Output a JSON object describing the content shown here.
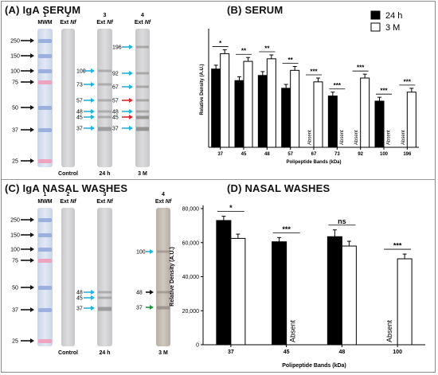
{
  "panels": {
    "A": {
      "title": "(A) IgA SERUM",
      "lanes": [
        {
          "num": "1",
          "label": "MWM",
          "italic": ""
        },
        {
          "num": "2",
          "label": "Ext ",
          "italic": "Nf"
        },
        {
          "num": "3",
          "label": "Ext ",
          "italic": "Nf"
        },
        {
          "num": "4",
          "label": "Ext ",
          "italic": "Nf"
        }
      ],
      "mwm_markers": [
        "250",
        "150",
        "100",
        "75",
        "50",
        "37",
        "25"
      ],
      "lane3_arrows": [
        "100",
        "73",
        "57",
        "48",
        "45",
        "37"
      ],
      "lane4_arrows": [
        "196",
        "92",
        "67",
        "57",
        "48",
        "45",
        "37"
      ],
      "bottom_labels": [
        "Control",
        "24 h",
        "3 M"
      ]
    },
    "C": {
      "title": "(C) IgA NASAL WASHES",
      "lanes": [
        {
          "num": "1",
          "label": "MWM",
          "italic": ""
        },
        {
          "num": "2",
          "label": "Ext ",
          "italic": "Nf"
        },
        {
          "num": "3",
          "label": "Ext ",
          "italic": "Nf"
        },
        {
          "num": "4",
          "label": "Ext ",
          "italic": "Nf"
        }
      ],
      "mwm_markers": [
        "250",
        "150",
        "100",
        "75",
        "50",
        "37",
        "25"
      ],
      "lane3_arrows": [
        "48",
        "45",
        "37"
      ],
      "lane4_arrows": [
        "100",
        "48",
        "37"
      ],
      "bottom_labels": [
        "Control",
        "24 h",
        "3 M"
      ]
    },
    "B": {
      "title": "(B) SERUM"
    },
    "D": {
      "title": "(D) NASAL WASHES"
    }
  },
  "legend": {
    "items": [
      "24 h",
      "3 M"
    ]
  },
  "colors": {
    "arrow_black": "#111111",
    "arrow_cyan": "#1fb3e0",
    "arrow_red": "#e0262a",
    "arrow_green": "#1a9a3a",
    "bar_24h": "#000000",
    "bar_3m": "#ffffff"
  },
  "chart_data": [
    {
      "type": "bar",
      "title": "(B) SERUM",
      "xlabel": "Polipeptide Bands (kDa)",
      "ylabel": "Relative Density (A.U.)",
      "categories": [
        "37",
        "45",
        "48",
        "57",
        "67",
        "73",
        "92",
        "100",
        "196"
      ],
      "ylim": [
        0,
        90
      ],
      "series": [
        {
          "name": "24 h",
          "values": [
            61,
            52,
            56,
            46,
            null,
            40,
            null,
            36,
            null
          ],
          "errors": [
            3,
            3,
            3,
            3,
            0,
            3,
            0,
            3,
            0
          ]
        },
        {
          "name": "3 M",
          "values": [
            73,
            67,
            69,
            60,
            51,
            null,
            54,
            null,
            43
          ],
          "errors": [
            3,
            3,
            3,
            3,
            3,
            0,
            3,
            0,
            3
          ]
        }
      ],
      "absent_labels": [
        {
          "category": "67",
          "series": "24 h",
          "text": "Absent"
        },
        {
          "category": "73",
          "series": "3 M",
          "text": "Absent"
        },
        {
          "category": "92",
          "series": "24 h",
          "text": "Absent"
        },
        {
          "category": "100",
          "series": "3 M",
          "text": "Absent"
        },
        {
          "category": "196",
          "series": "24 h",
          "text": "Absent"
        }
      ],
      "significance": [
        {
          "category": "37",
          "text": "*"
        },
        {
          "category": "45",
          "text": "**"
        },
        {
          "category": "48",
          "text": "**"
        },
        {
          "category": "57",
          "text": "**"
        },
        {
          "category": "67",
          "text": "***"
        },
        {
          "category": "73",
          "text": "***"
        },
        {
          "category": "92",
          "text": "***"
        },
        {
          "category": "100",
          "text": "***"
        },
        {
          "category": "196",
          "text": "***"
        }
      ],
      "grid": false,
      "legend_position": "top-right"
    },
    {
      "type": "bar",
      "title": "(D) NASAL WASHES",
      "xlabel": "Polipeptide Bands (kDa)",
      "ylabel": "Relative Density (A.U.)",
      "categories": [
        "37",
        "45",
        "48",
        "100"
      ],
      "ylim": [
        0,
        80000
      ],
      "yticks": [
        "0",
        "20,000",
        "40,000",
        "60,000",
        "80,000"
      ],
      "series": [
        {
          "name": "24 h",
          "values": [
            73000,
            60500,
            63500,
            null
          ],
          "errors": [
            2500,
            2500,
            4000,
            0
          ]
        },
        {
          "name": "3 M",
          "values": [
            62500,
            null,
            58000,
            50500
          ],
          "errors": [
            2500,
            0,
            2800,
            2800
          ]
        }
      ],
      "absent_labels": [
        {
          "category": "45",
          "series": "3 M",
          "text": "Absent"
        },
        {
          "category": "100",
          "series": "24 h",
          "text": "Absent"
        }
      ],
      "significance": [
        {
          "category": "37",
          "text": "*"
        },
        {
          "category": "45",
          "text": "***"
        },
        {
          "category": "48",
          "text": "ns"
        },
        {
          "category": "100",
          "text": "***"
        }
      ],
      "grid": false
    }
  ]
}
